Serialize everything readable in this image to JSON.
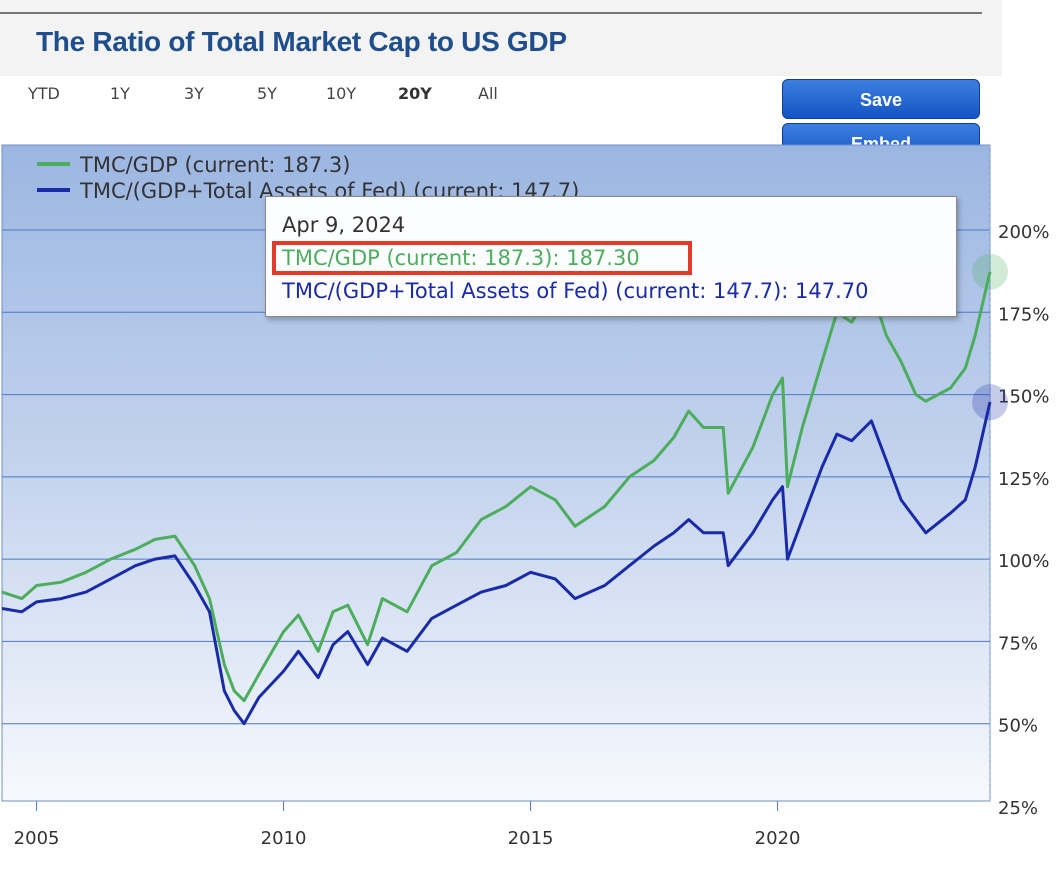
{
  "page": {
    "title": "The Ratio of Total Market Cap to US GDP"
  },
  "ranges": [
    {
      "label": "YTD",
      "active": false
    },
    {
      "label": "1Y",
      "active": false
    },
    {
      "label": "3Y",
      "active": false
    },
    {
      "label": "5Y",
      "active": false
    },
    {
      "label": "10Y",
      "active": false
    },
    {
      "label": "20Y",
      "active": true
    },
    {
      "label": "All",
      "active": false
    }
  ],
  "buttons": {
    "save": "Save",
    "embed": "Embed"
  },
  "tooltip": {
    "date": "Apr 9, 2024",
    "green_line": "TMC/GDP (current: 187.3): 187.30",
    "blue_line": "TMC/(GDP+Total Assets of Fed) (current: 147.7): 147.70"
  },
  "colors": {
    "green": "#4cae5c",
    "blue": "#1a2ba8",
    "accent": "#1f4e8c",
    "highlight": "#e33a2a"
  },
  "chart_data": {
    "type": "line",
    "title": "The Ratio of Total Market Cap to US GDP",
    "xlim": [
      2004.3,
      2024.3
    ],
    "ylim": [
      25,
      200
    ],
    "yticks": [
      25,
      50,
      75,
      100,
      125,
      150,
      175,
      200
    ],
    "ytick_labels": [
      "25%",
      "50%",
      "75%",
      "100%",
      "125%",
      "150%",
      "175%",
      "200%"
    ],
    "xticks": [
      2005,
      2010,
      2015,
      2020
    ],
    "xtick_labels": [
      "2005",
      "2010",
      "2015",
      "2020"
    ],
    "legend": [
      "TMC/GDP (current: 187.3)",
      "TMC/(GDP+Total Assets of Fed) (current: 147.7)"
    ],
    "series": [
      {
        "name": "TMC/GDP (current: 187.3)",
        "color": "#4cae5c",
        "x": [
          2004.3,
          2004.7,
          2005.0,
          2005.5,
          2006.0,
          2006.5,
          2007.0,
          2007.4,
          2007.8,
          2008.2,
          2008.5,
          2008.8,
          2009.0,
          2009.2,
          2009.5,
          2010.0,
          2010.3,
          2010.7,
          2011.0,
          2011.3,
          2011.7,
          2012.0,
          2012.5,
          2013.0,
          2013.5,
          2014.0,
          2014.5,
          2015.0,
          2015.5,
          2015.9,
          2016.5,
          2017.0,
          2017.5,
          2017.9,
          2018.2,
          2018.5,
          2018.9,
          2019.0,
          2019.5,
          2019.9,
          2020.1,
          2020.2,
          2020.5,
          2020.9,
          2021.2,
          2021.5,
          2021.9,
          2022.2,
          2022.5,
          2022.8,
          2023.0,
          2023.5,
          2023.8,
          2024.0,
          2024.3
        ],
        "values": [
          90,
          88,
          92,
          93,
          96,
          100,
          103,
          106,
          107,
          98,
          88,
          68,
          60,
          57,
          65,
          78,
          83,
          72,
          84,
          86,
          74,
          88,
          84,
          98,
          102,
          112,
          116,
          122,
          118,
          110,
          116,
          125,
          130,
          137,
          145,
          140,
          140,
          120,
          134,
          150,
          155,
          122,
          140,
          160,
          175,
          172,
          182,
          168,
          160,
          150,
          148,
          152,
          158,
          168,
          187.3
        ]
      },
      {
        "name": "TMC/(GDP+Total Assets of Fed) (current: 147.7)",
        "color": "#1a2ba8",
        "x": [
          2004.3,
          2004.7,
          2005.0,
          2005.5,
          2006.0,
          2006.5,
          2007.0,
          2007.4,
          2007.8,
          2008.2,
          2008.5,
          2008.8,
          2009.0,
          2009.2,
          2009.5,
          2010.0,
          2010.3,
          2010.7,
          2011.0,
          2011.3,
          2011.7,
          2012.0,
          2012.5,
          2013.0,
          2013.5,
          2014.0,
          2014.5,
          2015.0,
          2015.5,
          2015.9,
          2016.5,
          2017.0,
          2017.5,
          2017.9,
          2018.2,
          2018.5,
          2018.9,
          2019.0,
          2019.5,
          2019.9,
          2020.1,
          2020.2,
          2020.5,
          2020.9,
          2021.2,
          2021.5,
          2021.9,
          2022.2,
          2022.5,
          2022.8,
          2023.0,
          2023.5,
          2023.8,
          2024.0,
          2024.3
        ],
        "values": [
          85,
          84,
          87,
          88,
          90,
          94,
          98,
          100,
          101,
          92,
          84,
          60,
          54,
          50,
          58,
          66,
          72,
          64,
          74,
          78,
          68,
          76,
          72,
          82,
          86,
          90,
          92,
          96,
          94,
          88,
          92,
          98,
          104,
          108,
          112,
          108,
          108,
          98,
          108,
          118,
          122,
          100,
          112,
          128,
          138,
          136,
          142,
          130,
          118,
          112,
          108,
          114,
          118,
          128,
          147.7
        ]
      }
    ]
  }
}
